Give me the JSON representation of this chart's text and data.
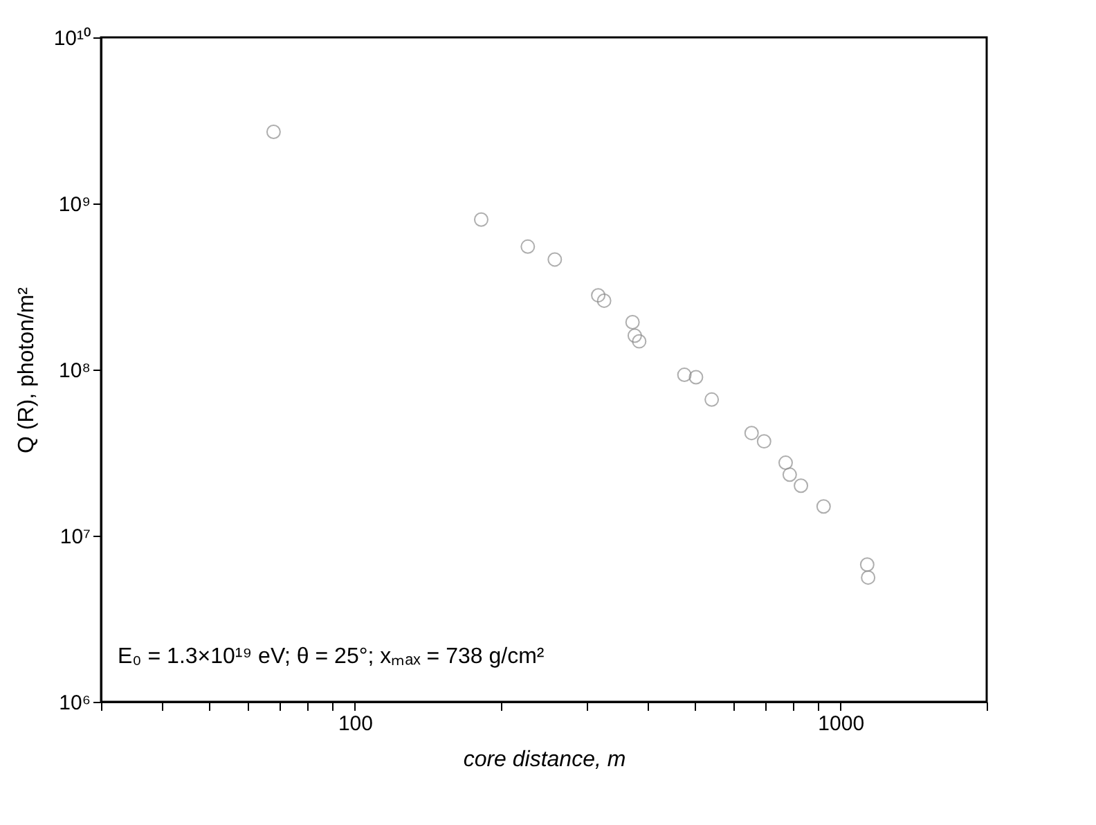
{
  "chart_data": {
    "type": "scatter",
    "xlabel": "core distance, m",
    "ylabel": "Q (R), photon/m²",
    "annotations": [
      "E₀ = 1.3×10¹⁹ eV; θ = 25°; xₘₐₓ = 738 g/cm²"
    ],
    "log": "xy",
    "marker": "circle",
    "grid": false,
    "xlim": [
      30,
      2000
    ],
    "ylim": [
      1000000,
      10000000000
    ],
    "xticks": [
      {
        "value": 30,
        "label": null
      },
      {
        "value": 40,
        "label": null
      },
      {
        "value": 50,
        "label": null
      },
      {
        "value": 60,
        "label": null
      },
      {
        "value": 70,
        "label": null
      },
      {
        "value": 80,
        "label": null
      },
      {
        "value": 90,
        "label": null
      },
      100,
      {
        "value": 200,
        "label": null
      },
      {
        "value": 300,
        "label": null
      },
      {
        "value": 400,
        "label": null
      },
      {
        "value": 500,
        "label": null
      },
      {
        "value": 600,
        "label": null
      },
      {
        "value": 700,
        "label": null
      },
      {
        "value": 800,
        "label": null
      },
      {
        "value": 900,
        "label": null
      },
      1000,
      {
        "value": 2000,
        "label": null
      }
    ],
    "yticks": [
      {
        "value": 1000000,
        "label": "10⁶"
      },
      {
        "value": 10000000,
        "label": "10⁷"
      },
      {
        "value": 100000000,
        "label": "10⁸"
      },
      {
        "value": 1000000000,
        "label": "10⁹"
      },
      {
        "value": 10000000000,
        "label": "10¹⁰"
      }
    ],
    "x": [
      68,
      182,
      227,
      258,
      317,
      326,
      373,
      377,
      385,
      477,
      504,
      543,
      656,
      696,
      771,
      786,
      829,
      923,
      1135,
      1140
    ],
    "series": [
      {
        "color": "#8c8c8c",
        "values": [
          2700000000,
          800000000,
          550000000,
          460000000,
          280000000,
          260000000,
          193000000,
          160000000,
          148000000,
          93000000,
          90000000,
          66000000,
          41500000,
          37000000,
          27500000,
          23300000,
          20000000,
          15000000,
          6700000,
          5600000
        ]
      }
    ]
  }
}
